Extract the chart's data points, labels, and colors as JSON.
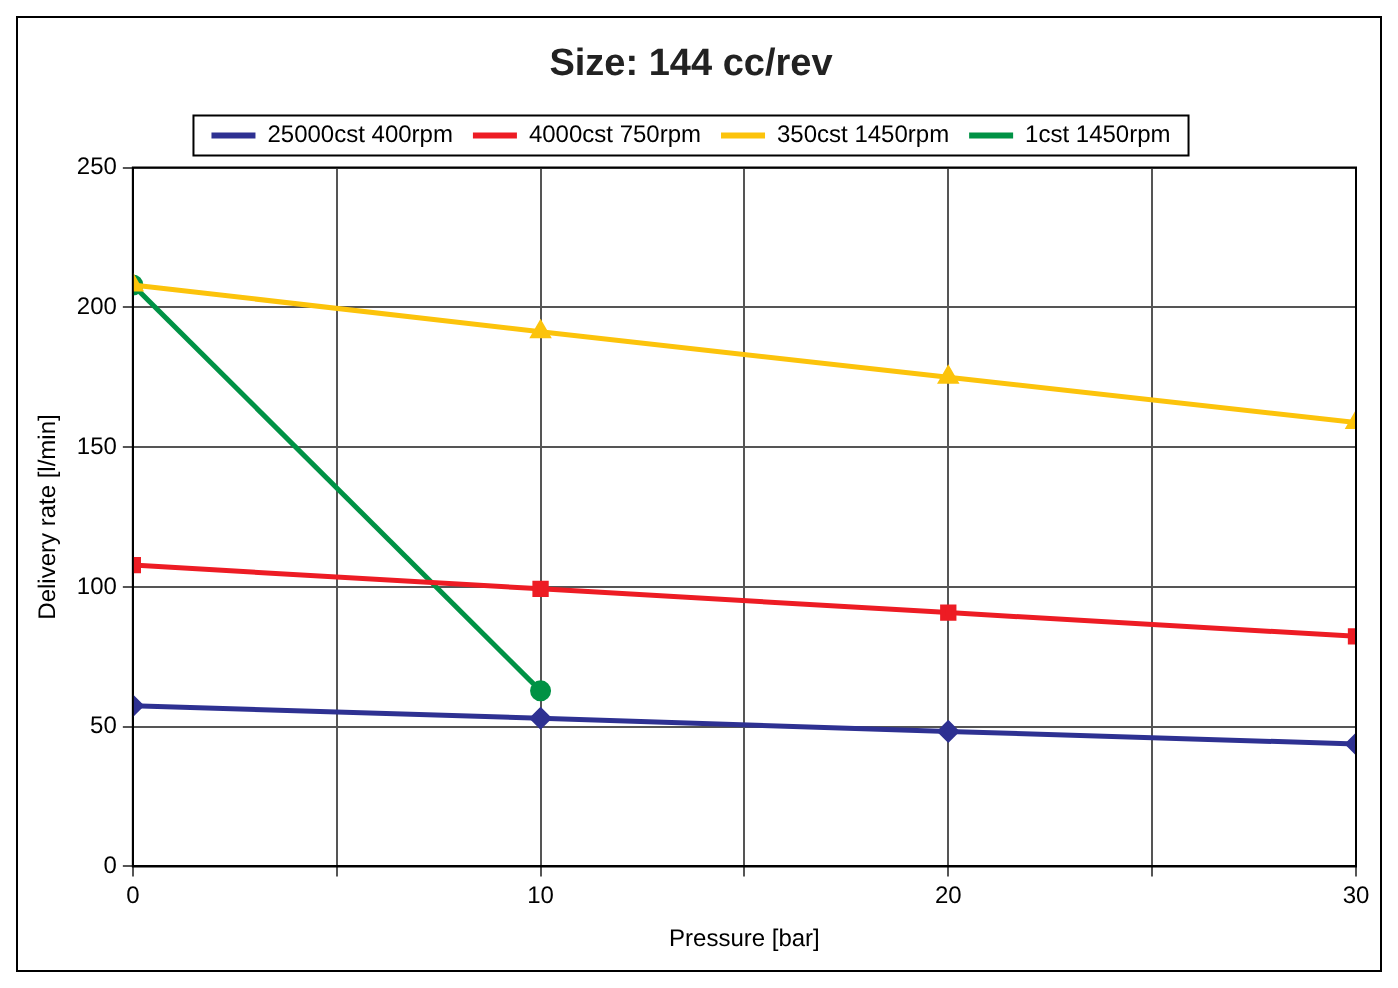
{
  "chart_data": {
    "type": "line",
    "title": "Size: 144 cc/rev",
    "xlabel": "Pressure [bar]",
    "ylabel": "Delivery rate [l/min]",
    "x": [
      0,
      10,
      20,
      30
    ],
    "series": [
      {
        "name": "25000cst 400rpm",
        "color": "#2e3192",
        "marker": "diamond",
        "values": [
          57.5,
          53,
          48.3,
          43.8
        ]
      },
      {
        "name": "4000cst 750rpm",
        "color": "#ed1c24",
        "marker": "square",
        "values": [
          107.8,
          99.3,
          90.8,
          82.3
        ]
      },
      {
        "name": "350cst 1450rpm",
        "color": "#fcc30b",
        "marker": "triangle",
        "values": [
          208,
          191.3,
          175,
          158.8
        ]
      },
      {
        "name": "1cst 1450rpm",
        "color": "#009245",
        "marker": "circle",
        "x": [
          0,
          10
        ],
        "values": [
          208,
          62.8
        ]
      }
    ],
    "xlim": [
      0,
      30
    ],
    "xticks": [
      0,
      {
        "value": 5,
        "label": null
      },
      10,
      {
        "value": 15,
        "label": null
      },
      20,
      {
        "value": 25,
        "label": null
      },
      30
    ],
    "ylim": [
      0,
      250
    ],
    "yticks": [
      0,
      50,
      100,
      150,
      200,
      250
    ],
    "grid": true,
    "legend": "top",
    "line_style": "solid"
  }
}
